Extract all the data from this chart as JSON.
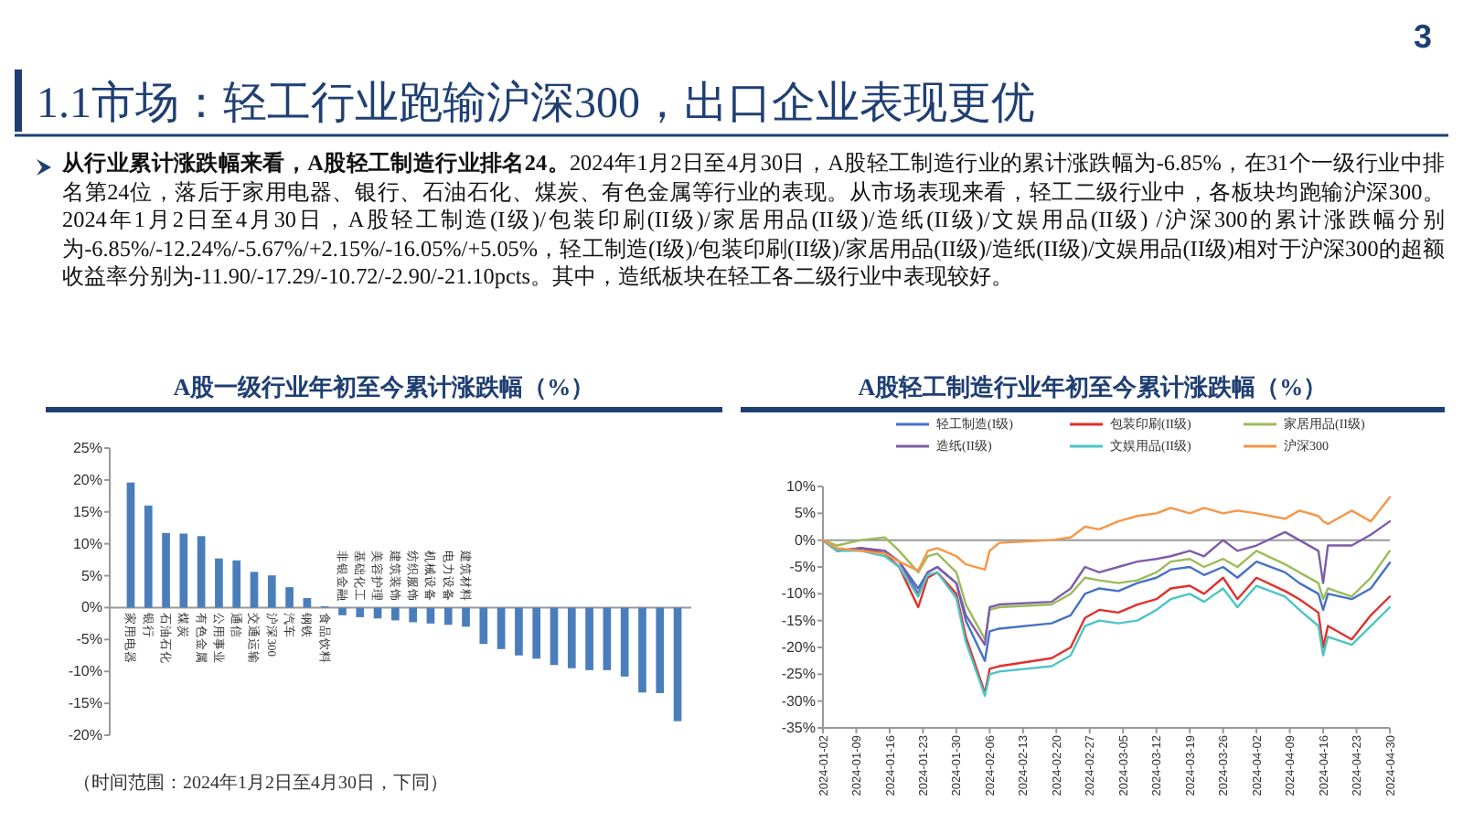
{
  "chart_data": [
    {
      "type": "other",
      "title": "1.1市场：轻工行业跑输沪深300，出口企业表现更优",
      "annotations": [
        "3",
        "从行业累计涨跌幅来看，A股轻工制造行业排名24。",
        "2024年1月2日至4月30日，A股轻工制造行业的累计涨跌幅为-6.85%，在31个一级行业中排名第24位，落后于家用电器、银行、石油石化、煤炭、有色金属等行业的表现。从市场表现来看，轻工二级行业中，各板块均跑输沪深300。 2024年1月2日至4月30日，A股轻工制造(I级)/包装印刷(II级)/家居用品(II级)/造纸(II级)/文娱用品(II级) /沪深300的累计涨跌幅分别为-6.85%/-12.24%/-5.67%/+2.15%/-16.05%/+5.05%，轻工制造(I级)/包装印刷(II级)/家居用品(II级)/造纸(II级)/文娱用品(II级)相对于沪深300的超额收益率分别为-11.90/-17.29/-10.72/-2.90/-21.10pcts。其中，造纸板块在轻工各二级行业中表现较好。"
      ]
    },
    {
      "type": "bar",
      "title": "A股一级行业年初至今累计涨跌幅（%）",
      "categories": [
        "家用电器",
        "银行",
        "石油石化",
        "煤炭",
        "有色金属",
        "公用事业",
        "通信",
        "交通运输",
        "沪深300",
        "汽车",
        "钢铁",
        "食品饮料",
        "非银金融",
        "基础化工",
        "美容护理",
        "建筑装饰",
        "纺织服饰",
        "机械设备",
        "电力设备",
        "建筑材料",
        null,
        null,
        null,
        null,
        null,
        null,
        null,
        null,
        null,
        null,
        null,
        null
      ],
      "values": [
        19.6,
        16.0,
        11.7,
        11.6,
        11.2,
        7.7,
        7.4,
        5.6,
        5.05,
        3.2,
        1.5,
        0.2,
        -1.2,
        -1.5,
        -1.7,
        -2.0,
        -2.3,
        -2.5,
        -2.7,
        -3.0,
        -5.7,
        -6.5,
        -7.5,
        -8.0,
        -9.0,
        -9.5,
        -9.8,
        -9.8,
        -10.8,
        -13.3,
        -13.4,
        -17.8
      ],
      "color": "#4a7ebb",
      "ylim": [
        -20,
        25
      ],
      "yticks": [
        {
          "value": -20,
          "label": "-20%"
        },
        {
          "value": -15,
          "label": "-15%"
        },
        {
          "value": -10,
          "label": "-10%"
        },
        {
          "value": -5,
          "label": "-5%"
        },
        {
          "value": 0,
          "label": "0%"
        },
        {
          "value": 5,
          "label": "5%"
        },
        {
          "value": 10,
          "label": "10%"
        },
        {
          "value": 15,
          "label": "15%"
        },
        {
          "value": 20,
          "label": "20%"
        },
        {
          "value": 25,
          "label": "25%"
        }
      ],
      "annotations": [
        "（时间范围：2024年1月2日至4月30日，下同）"
      ]
    },
    {
      "type": "line",
      "title": "A股轻工制造行业年初至今累计涨跌幅（%）",
      "legend": "top",
      "marker": "none",
      "line_style": "solid",
      "x": [
        "2024-01-02",
        "2024-01-05",
        "2024-01-10",
        "2024-01-15",
        "2024-01-18",
        "2024-01-22",
        "2024-01-24",
        "2024-01-26",
        "2024-01-30",
        "2024-02-01",
        "2024-02-05",
        "2024-02-06",
        "2024-02-08",
        "2024-02-19",
        "2024-02-23",
        "2024-02-26",
        "2024-02-29",
        "2024-03-04",
        "2024-03-08",
        "2024-03-12",
        "2024-03-15",
        "2024-03-19",
        "2024-03-22",
        "2024-03-26",
        "2024-03-29",
        "2024-04-02",
        "2024-04-08",
        "2024-04-11",
        "2024-04-15",
        "2024-04-16",
        "2024-04-17",
        "2024-04-22",
        "2024-04-26",
        "2024-04-30"
      ],
      "series": [
        {
          "name": "轻工制造(I级)",
          "color": "#4472c4",
          "values": [
            0,
            -2,
            -1.5,
            -2,
            -4,
            -9,
            -6,
            -5,
            -8,
            -15,
            -22.5,
            -17,
            -16.5,
            -15.5,
            -14,
            -10,
            -9,
            -9.5,
            -8,
            -7,
            -5.5,
            -5,
            -6.5,
            -5,
            -7,
            -4,
            -6,
            -8,
            -10,
            -13,
            -10,
            -11,
            -9,
            -4.2
          ]
        },
        {
          "name": "包装印刷(II级)",
          "color": "#e0302c",
          "values": [
            0,
            -2,
            -1.5,
            -2.5,
            -5,
            -12.5,
            -7,
            -6,
            -10,
            -18,
            -28.5,
            -24,
            -23.5,
            -22,
            -20,
            -14.5,
            -13,
            -13.5,
            -12,
            -11,
            -9,
            -8.5,
            -10,
            -7,
            -11,
            -7,
            -9.5,
            -11,
            -13.5,
            -20,
            -16,
            -18.5,
            -14,
            -10.5
          ]
        },
        {
          "name": "家居用品(II级)",
          "color": "#9bbb59",
          "values": [
            0,
            -1,
            0,
            0.5,
            -2,
            -6,
            -3,
            -2.5,
            -6,
            -12,
            -18.5,
            -13,
            -12.5,
            -12,
            -10,
            -7,
            -7.5,
            -8,
            -7.5,
            -6,
            -4,
            -3.5,
            -5,
            -3.5,
            -5,
            -2,
            -4.5,
            -6,
            -8,
            -11,
            -9,
            -10.5,
            -7,
            -2
          ]
        },
        {
          "name": "造纸(II级)",
          "color": "#7e5ca8",
          "values": [
            0,
            -2,
            -1.5,
            -2,
            -4,
            -10,
            -6,
            -5,
            -8,
            -14,
            -19.5,
            -12.5,
            -12,
            -11.5,
            -9,
            -5,
            -6,
            -5,
            -4,
            -3.5,
            -3,
            -2,
            -3,
            0,
            -2,
            -1,
            1.5,
            0,
            -2,
            -8,
            -1,
            -1,
            1,
            3.5
          ]
        },
        {
          "name": "文娱用品(II级)",
          "color": "#4bc5c5",
          "values": [
            0,
            -2,
            -2,
            -3,
            -5,
            -10.5,
            -6.5,
            -6,
            -10.8,
            -19,
            -29,
            -25,
            -24.5,
            -23.5,
            -21.5,
            -16,
            -15,
            -15.5,
            -15,
            -13,
            -11,
            -10,
            -11.5,
            -9,
            -12.5,
            -8.5,
            -10.5,
            -13,
            -16,
            -21.5,
            -18,
            -19.5,
            -16,
            -12.5
          ]
        },
        {
          "name": "沪深300",
          "color": "#f79646",
          "values": [
            0,
            -1.5,
            -2,
            -2.5,
            -4,
            -5.7,
            -2,
            -1.5,
            -3,
            -4.5,
            -5.5,
            -2,
            -0.5,
            0,
            0.5,
            2.5,
            2,
            3.5,
            4.5,
            5,
            6,
            5,
            6,
            5,
            5.5,
            5,
            4,
            5.5,
            4.5,
            3.5,
            3,
            5.5,
            3.5,
            8
          ]
        }
      ],
      "xlim": [
        "2024-01-02",
        "2024-04-30"
      ],
      "xticks": [
        "2024-01-02",
        "2024-01-09",
        "2024-01-16",
        "2024-01-23",
        "2024-01-30",
        "2024-02-06",
        "2024-02-13",
        "2024-02-20",
        "2024-02-27",
        "2024-03-05",
        "2024-03-12",
        "2024-03-19",
        "2024-03-26",
        "2024-04-02",
        "2024-04-09",
        "2024-04-16",
        "2024-04-23",
        "2024-04-30"
      ],
      "ylim": [
        -35,
        10
      ],
      "yticks": [
        {
          "value": -35,
          "label": "-35%"
        },
        {
          "value": -30,
          "label": "-30%"
        },
        {
          "value": -25,
          "label": "-25%"
        },
        {
          "value": -20,
          "label": "-20%"
        },
        {
          "value": -15,
          "label": "-15%"
        },
        {
          "value": -10,
          "label": "-10%"
        },
        {
          "value": -5,
          "label": "-5%"
        },
        {
          "value": 0,
          "label": "0%"
        },
        {
          "value": 5,
          "label": "5%"
        },
        {
          "value": 10,
          "label": "10%"
        }
      ]
    }
  ]
}
